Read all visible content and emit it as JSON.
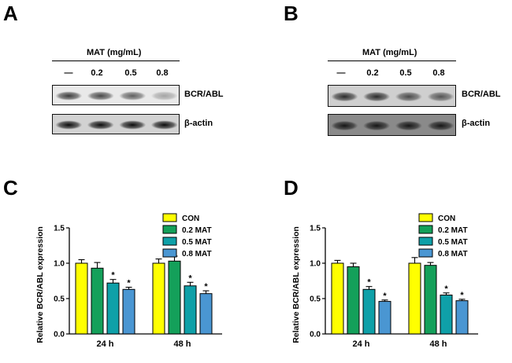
{
  "panel_letters": {
    "a": "A",
    "b": "B",
    "c": "C",
    "d": "D"
  },
  "blots": {
    "A": {
      "title": "MAT (mg/mL)",
      "lanes": [
        "—",
        "0.2",
        "0.5",
        "0.8"
      ],
      "bands": [
        {
          "label": "BCR/ABL",
          "intensities": [
            0.75,
            0.7,
            0.6,
            0.3
          ],
          "background": "#e9e9e9"
        },
        {
          "label": "β-actin",
          "intensities": [
            0.95,
            0.95,
            0.95,
            0.95
          ],
          "background": "#d2d2d2"
        }
      ]
    },
    "B": {
      "title": "MAT (mg/mL)",
      "lanes": [
        "—",
        "0.2",
        "0.5",
        "0.8"
      ],
      "bands": [
        {
          "label": "BCR/ABL",
          "intensities": [
            0.8,
            0.8,
            0.65,
            0.6
          ],
          "background": "#cfcfcf"
        },
        {
          "label": "β-actin",
          "intensities": [
            0.85,
            0.85,
            0.85,
            0.85
          ],
          "background": "#8a8a8a"
        }
      ]
    }
  },
  "chart_data": [
    {
      "panel": "C",
      "type": "bar",
      "categories": [
        "24 h",
        "48 h"
      ],
      "series": [
        {
          "name": "CON",
          "color": "#ffff00",
          "values": [
            1.0,
            1.0
          ],
          "errors": [
            0.05,
            0.06
          ],
          "significant": [
            false,
            false
          ]
        },
        {
          "name": "0.2 MAT",
          "color": "#14a05a",
          "values": [
            0.93,
            1.03
          ],
          "errors": [
            0.08,
            0.07
          ],
          "significant": [
            false,
            false
          ]
        },
        {
          "name": "0.5 MAT",
          "color": "#0fa0a8",
          "values": [
            0.72,
            0.68
          ],
          "errors": [
            0.05,
            0.05
          ],
          "significant": [
            true,
            true
          ]
        },
        {
          "name": "0.8 MAT",
          "color": "#4a96d2",
          "values": [
            0.63,
            0.57
          ],
          "errors": [
            0.03,
            0.04
          ],
          "significant": [
            true,
            true
          ]
        }
      ],
      "ylabel": "Relative BCR/ABL expression",
      "ylim": [
        0,
        1.5
      ],
      "yticks": [
        "0.0",
        "0.5",
        "1.0",
        "1.5"
      ],
      "significance_marker": "*",
      "legend": "top-right"
    },
    {
      "panel": "D",
      "type": "bar",
      "categories": [
        "24 h",
        "48 h"
      ],
      "series": [
        {
          "name": "CON",
          "color": "#ffff00",
          "values": [
            1.0,
            1.0
          ],
          "errors": [
            0.04,
            0.08
          ],
          "significant": [
            false,
            false
          ]
        },
        {
          "name": "0.2 MAT",
          "color": "#14a05a",
          "values": [
            0.95,
            0.97
          ],
          "errors": [
            0.05,
            0.04
          ],
          "significant": [
            false,
            false
          ]
        },
        {
          "name": "0.5 MAT",
          "color": "#0fa0a8",
          "values": [
            0.63,
            0.55
          ],
          "errors": [
            0.04,
            0.03
          ],
          "significant": [
            true,
            true
          ]
        },
        {
          "name": "0.8 MAT",
          "color": "#4a96d2",
          "values": [
            0.46,
            0.47
          ],
          "errors": [
            0.02,
            0.02
          ],
          "significant": [
            true,
            true
          ]
        }
      ],
      "ylabel": "Relative BCR/ABL expression",
      "ylim": [
        0,
        1.5
      ],
      "yticks": [
        "0.0",
        "0.5",
        "1.0",
        "1.5"
      ],
      "significance_marker": "*",
      "legend": "top-right"
    }
  ]
}
